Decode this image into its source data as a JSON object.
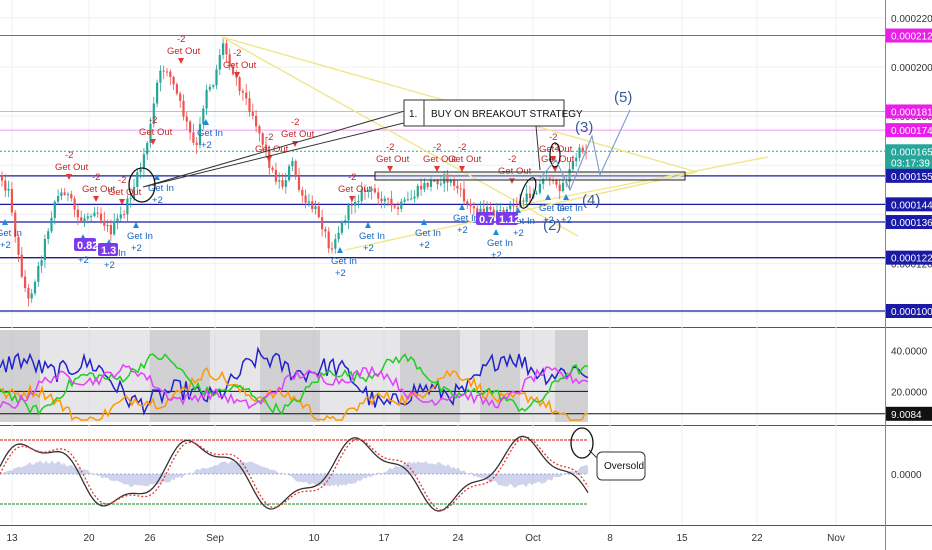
{
  "chart_data": {
    "type": "candlestick",
    "price_axis": {
      "ticks": [
        "0.0002200",
        "0.0002000",
        "0.0001800",
        "0.0001200"
      ],
      "ylim": [
        9.5e-05,
        0.000224
      ],
      "tags": [
        {
          "label": "0.0002128",
          "value": 0.0002128,
          "color": "#e91ee9"
        },
        {
          "label": "0.0001819",
          "value": 0.0001819,
          "color": "#e91ee9"
        },
        {
          "label": "0.0001743",
          "value": 0.0001743,
          "color": "#e91ee9"
        },
        {
          "label": "0.0001657",
          "value": 0.0001657,
          "color": "#26a69a"
        },
        {
          "label": "03:17:39",
          "value": 0.0001612,
          "color": "#26a69a"
        },
        {
          "label": "0.0001557",
          "value": 0.0001557,
          "color": "#1a1aa6"
        },
        {
          "label": "0.0001441",
          "value": 0.0001441,
          "color": "#1a1aa6"
        },
        {
          "label": "0.0001369",
          "value": 0.0001369,
          "color": "#1a1aa6"
        },
        {
          "label": "0.0001224",
          "value": 0.0001224,
          "color": "#1a1aa6"
        },
        {
          "label": "0.0001007",
          "value": 0.0001007,
          "color": "#1a1aa6"
        }
      ]
    },
    "oscillator_1": {
      "ticks": [
        "40.0000",
        "20.0000"
      ],
      "tag": {
        "label": "9.0084",
        "value": 9.0084,
        "color": "#111111"
      },
      "ylim": [
        5,
        50
      ]
    },
    "oscillator_2": {
      "ticks": [
        "0.0000"
      ]
    },
    "x_axis": {
      "labels": [
        "13",
        "20",
        "26",
        "Sep",
        "10",
        "17",
        "24",
        "Oct",
        "8",
        "15",
        "22",
        "Nov"
      ]
    },
    "annotations": {
      "strategy_box": "BUY ON BREAKOUT STRATEGY",
      "strategy_number": "1.",
      "oversold_box": "Oversold",
      "waves": [
        "(2)",
        "(3)",
        "(4)",
        "(5)"
      ],
      "signals": {
        "get_out": "Get Out",
        "get_in": "Get In",
        "minus_two": "-2",
        "plus_two": "+2"
      },
      "value_badges": [
        "0.82",
        "1.3",
        "0.7",
        "1.12"
      ]
    }
  }
}
